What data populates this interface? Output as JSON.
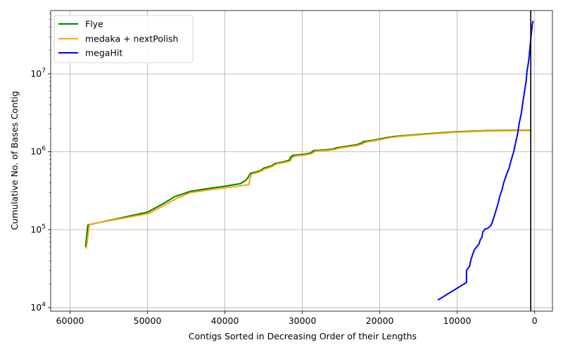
{
  "chart_data": {
    "type": "line",
    "title": "",
    "xlabel": "Contigs Sorted in Decreasing Order of their Lengths",
    "ylabel": "Cumulative No. of Bases Contig",
    "x_inverted": true,
    "xlim": [
      62500,
      -2300
    ],
    "ylim": [
      9000,
      65000000
    ],
    "y_scale": "log",
    "grid": true,
    "legend_position": "top-left",
    "x_ticks": [
      {
        "value": 60000,
        "label": "60000"
      },
      {
        "value": 50000,
        "label": "50000"
      },
      {
        "value": 40000,
        "label": "40000"
      },
      {
        "value": 30000,
        "label": "30000"
      },
      {
        "value": 20000,
        "label": "20000"
      },
      {
        "value": 10000,
        "label": "10000"
      },
      {
        "value": 0,
        "label": "0"
      }
    ],
    "y_ticks": [
      {
        "value": 10000,
        "base": "10",
        "exp": "4"
      },
      {
        "value": 100000,
        "base": "10",
        "exp": "5"
      },
      {
        "value": 1000000,
        "base": "10",
        "exp": "6"
      },
      {
        "value": 10000000,
        "base": "10",
        "exp": "7"
      }
    ],
    "vline": {
      "x": 500,
      "color": "#000000"
    },
    "series": [
      {
        "name": "Flye",
        "color": "#008000",
        "points": [
          [
            58000,
            60000
          ],
          [
            57700,
            115000
          ],
          [
            50000,
            168000
          ],
          [
            48000,
            215000
          ],
          [
            46500,
            265000
          ],
          [
            44500,
            310000
          ],
          [
            42000,
            340000
          ],
          [
            40000,
            362000
          ],
          [
            38000,
            390000
          ],
          [
            37300,
            430000
          ],
          [
            37000,
            470000
          ],
          [
            36700,
            530000
          ],
          [
            36000,
            550000
          ],
          [
            35300,
            580000
          ],
          [
            35000,
            615000
          ],
          [
            34000,
            660000
          ],
          [
            33500,
            710000
          ],
          [
            32500,
            740000
          ],
          [
            31700,
            780000
          ],
          [
            31500,
            860000
          ],
          [
            31200,
            900000
          ],
          [
            30000,
            925000
          ],
          [
            29000,
            960000
          ],
          [
            28500,
            1040000
          ],
          [
            27000,
            1060000
          ],
          [
            26000,
            1090000
          ],
          [
            25500,
            1130000
          ],
          [
            24000,
            1190000
          ],
          [
            23000,
            1230000
          ],
          [
            22500,
            1280000
          ],
          [
            22000,
            1360000
          ],
          [
            21000,
            1400000
          ],
          [
            20000,
            1460000
          ],
          [
            19000,
            1530000
          ],
          [
            18000,
            1580000
          ],
          [
            16000,
            1640000
          ],
          [
            14000,
            1700000
          ],
          [
            12000,
            1760000
          ],
          [
            10000,
            1810000
          ],
          [
            8000,
            1840000
          ],
          [
            6000,
            1870000
          ],
          [
            4000,
            1880000
          ],
          [
            2000,
            1890000
          ],
          [
            500,
            1890000
          ]
        ]
      },
      {
        "name": "medaka + nextPolish",
        "color": "#ffa500",
        "points": [
          [
            57900,
            57000
          ],
          [
            57500,
            117000
          ],
          [
            49800,
            162000
          ],
          [
            47900,
            205000
          ],
          [
            46300,
            250000
          ],
          [
            44500,
            298000
          ],
          [
            42000,
            325000
          ],
          [
            40000,
            345000
          ],
          [
            38000,
            365000
          ],
          [
            36900,
            380000
          ],
          [
            36800,
            450000
          ],
          [
            36500,
            520000
          ],
          [
            35800,
            540000
          ],
          [
            35200,
            570000
          ],
          [
            34900,
            600000
          ],
          [
            34000,
            640000
          ],
          [
            33300,
            700000
          ],
          [
            32400,
            725000
          ],
          [
            31600,
            760000
          ],
          [
            31300,
            840000
          ],
          [
            31000,
            880000
          ],
          [
            29800,
            905000
          ],
          [
            28800,
            945000
          ],
          [
            28300,
            1020000
          ],
          [
            26800,
            1040000
          ],
          [
            25800,
            1070000
          ],
          [
            25300,
            1110000
          ],
          [
            23800,
            1170000
          ],
          [
            22800,
            1210000
          ],
          [
            22300,
            1260000
          ],
          [
            21800,
            1330000
          ],
          [
            20800,
            1380000
          ],
          [
            19800,
            1440000
          ],
          [
            18800,
            1510000
          ],
          [
            17800,
            1560000
          ],
          [
            15800,
            1620000
          ],
          [
            13800,
            1680000
          ],
          [
            11800,
            1740000
          ],
          [
            9800,
            1790000
          ],
          [
            7800,
            1820000
          ],
          [
            5800,
            1850000
          ],
          [
            3800,
            1860000
          ],
          [
            1800,
            1870000
          ],
          [
            500,
            1870000
          ]
        ]
      },
      {
        "name": "megaHit",
        "color": "#0000ff",
        "points": [
          [
            12500,
            12500
          ],
          [
            8800,
            21000
          ],
          [
            8800,
            30000
          ],
          [
            8400,
            34000
          ],
          [
            8200,
            42000
          ],
          [
            7800,
            55000
          ],
          [
            7500,
            60000
          ],
          [
            7200,
            65000
          ],
          [
            7000,
            75000
          ],
          [
            6800,
            80000
          ],
          [
            6700,
            93000
          ],
          [
            6400,
            102000
          ],
          [
            6000,
            105000
          ],
          [
            5600,
            115000
          ],
          [
            5300,
            140000
          ],
          [
            5000,
            175000
          ],
          [
            4700,
            220000
          ],
          [
            4500,
            270000
          ],
          [
            4200,
            330000
          ],
          [
            4000,
            400000
          ],
          [
            3600,
            520000
          ],
          [
            3300,
            620000
          ],
          [
            3000,
            800000
          ],
          [
            2700,
            1000000
          ],
          [
            2500,
            1250000
          ],
          [
            2200,
            1700000
          ],
          [
            2000,
            2300000
          ],
          [
            1700,
            3200000
          ],
          [
            1500,
            4500000
          ],
          [
            1300,
            6000000
          ],
          [
            1100,
            8000000
          ],
          [
            1000,
            10500000
          ],
          [
            800,
            14000000
          ],
          [
            700,
            17000000
          ],
          [
            600,
            22000000
          ],
          [
            500,
            28000000
          ],
          [
            400,
            35000000
          ],
          [
            300,
            43000000
          ],
          [
            200,
            48000000
          ]
        ]
      }
    ]
  }
}
